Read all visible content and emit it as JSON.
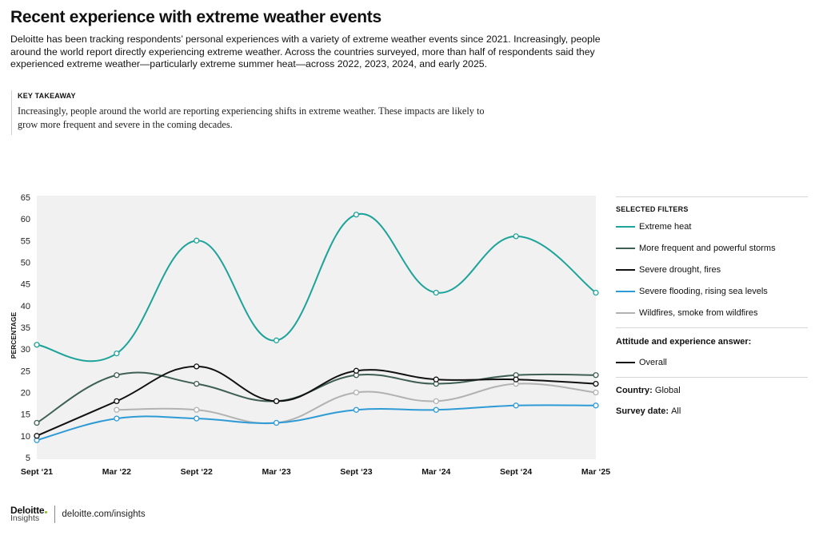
{
  "header": {
    "title": "Recent experience with extreme weather events",
    "intro": "Deloitte has been tracking respondents’ personal experiences with a variety of extreme weather events since 2021. Increasingly, people around the world report directly experiencing extreme weather. Across the countries surveyed, more than half of respondents said they experienced extreme weather—particularly extreme summer heat—across 2022, 2023, 2024, and early 2025."
  },
  "takeaway": {
    "heading": "KEY TAKEAWAY",
    "body": "Increasingly, people around the world are reporting experiencing shifts in extreme weather. These impacts are likely to grow more frequent and severe in the coming decades."
  },
  "chart_data": {
    "type": "line",
    "ylabel": "PERCENTAGE",
    "xlabel": "",
    "ylim": [
      5,
      65
    ],
    "yticks": [
      5,
      10,
      15,
      20,
      25,
      30,
      35,
      40,
      45,
      50,
      55,
      60,
      65
    ],
    "categories": [
      "Sept ‘21",
      "Mar ‘22",
      "Sept ‘22",
      "Mar ‘23",
      "Sept ‘23",
      "Mar ‘24",
      "Sept ‘24",
      "Mar ‘25"
    ],
    "grid": false,
    "legend_placement": "right",
    "series": [
      {
        "name": "Wildfires, smoke from wildfires",
        "color": "#b2b2b2",
        "values": [
          null,
          16,
          16,
          13,
          20,
          18,
          22,
          20
        ]
      },
      {
        "name": "Severe flooding, rising sea levels",
        "color": "#2e9bd6",
        "values": [
          9,
          14,
          14,
          13,
          16,
          16,
          17,
          17
        ]
      },
      {
        "name": "More frequent and powerful storms",
        "color": "#3f5f55",
        "values": [
          13,
          24,
          22,
          18,
          24,
          22,
          24,
          24
        ]
      },
      {
        "name": "Severe drought, fires",
        "color": "#111111",
        "values": [
          10,
          18,
          26,
          18,
          25,
          23,
          23,
          22
        ]
      },
      {
        "name": "Extreme heat",
        "color": "#1ea39a",
        "values": [
          31,
          29,
          55,
          32,
          61,
          43,
          56,
          43
        ]
      }
    ]
  },
  "filters": {
    "heading": "SELECTED FILTERS",
    "legend": [
      {
        "label": "Extreme heat",
        "color": "#1ea39a"
      },
      {
        "label": "More frequent and powerful storms",
        "color": "#3f5f55"
      },
      {
        "label": "Severe drought, fires",
        "color": "#111111"
      },
      {
        "label": "Severe flooding, rising sea levels",
        "color": "#2e9bd6"
      },
      {
        "label": "Wildfires, smoke from wildfires",
        "color": "#b2b2b2"
      }
    ],
    "attitude_label": "Attitude and experience answer:",
    "attitude_legend": {
      "label": "Overall",
      "color": "#111111"
    },
    "country_label": "Country:",
    "country_value": "Global",
    "survey_label": "Survey date:",
    "survey_value": "All"
  },
  "footer": {
    "logo": "Deloitte",
    "logo_sub": "Insights",
    "url": "deloitte.com/insights"
  }
}
